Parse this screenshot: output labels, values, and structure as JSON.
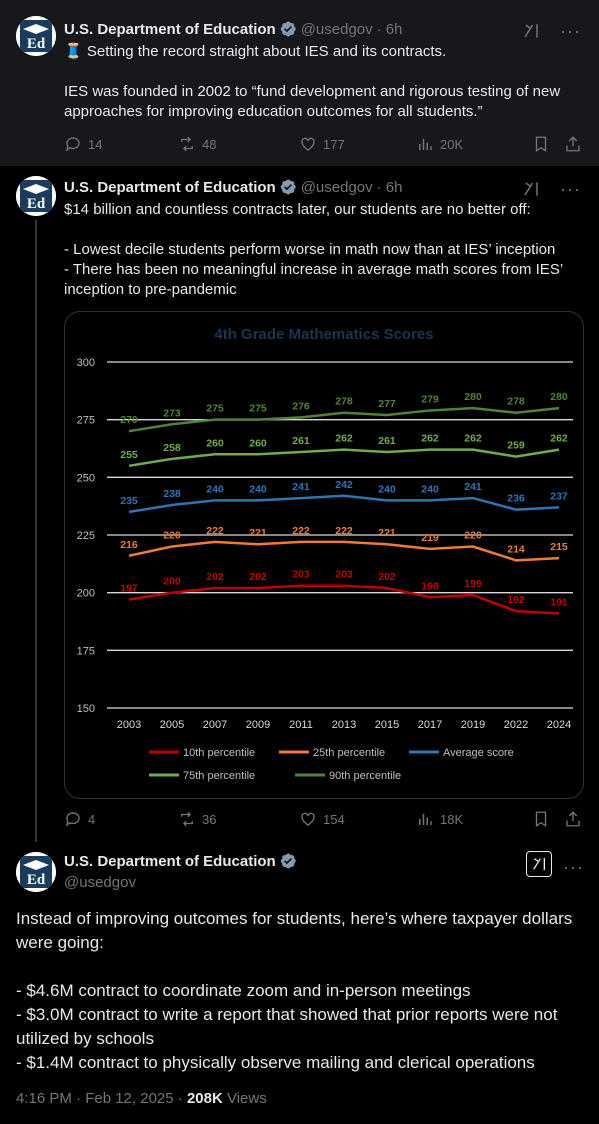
{
  "post1": {
    "name": "U.S. Department of Education",
    "handle": "@usedgov",
    "time": "· 6h",
    "text": "🧵 Setting the record straight about IES and its contracts.\n\nIES was founded in 2002 to “fund development and rigorous testing of new approaches for improving education outcomes for all students.”",
    "replies": "14",
    "reposts": "48",
    "likes": "177",
    "views": "20K"
  },
  "post2": {
    "name": "U.S. Department of Education",
    "handle": "@usedgov",
    "time": "· 6h",
    "text": "$14 billion and countless contracts later, our students are no better off:\n\n- Lowest decile students perform worse in math now than at IES’ inception\n- There has been no meaningful increase in average math scores from IES’ inception to pre-pandemic",
    "replies": "4",
    "reposts": "36",
    "likes": "154",
    "views": "18K"
  },
  "main_post": {
    "name": "U.S. Department of Education",
    "handle": "@usedgov",
    "text": "Instead of improving outcomes for students, here’s where taxpayer dollars were going:\n\n- $4.6M contract to coordinate zoom and in-person meetings\n- $3.0M contract to write a report that showed that prior reports were not utilized by schools\n- $1.4M contract to physically observe mailing and clerical operations",
    "timestamp": "4:16 PM · Feb 12, 2025 · ",
    "views_count": "208K",
    "views_label": " Views"
  },
  "icons": {
    "reply": "reply-icon",
    "repost": "repost-icon",
    "like": "heart-icon",
    "views": "analytics-icon",
    "bookmark": "bookmark-icon",
    "share": "share-icon",
    "grok": "grok-icon",
    "more": "more-icon",
    "verified": "verified-badge-icon"
  },
  "colors": {
    "background": "#000000",
    "thread_bg": "#16181c",
    "secondary_text": "#71767b",
    "verified_gray": "#829aab"
  },
  "chart_data": {
    "type": "line",
    "title": "4th Grade Mathematics Scores",
    "x": [
      "2003",
      "2005",
      "2007",
      "2009",
      "2011",
      "2013",
      "2015",
      "2017",
      "2019",
      "2022",
      "2024"
    ],
    "ylim": [
      150,
      300
    ],
    "yticks": [
      150,
      175,
      200,
      225,
      250,
      275,
      300
    ],
    "grid": true,
    "legend_position": "bottom",
    "series": [
      {
        "name": "10th percentile",
        "color": "#c00000",
        "values": [
          197,
          200,
          202,
          202,
          203,
          203,
          202,
          198,
          199,
          192,
          191
        ]
      },
      {
        "name": "25th percentile",
        "color": "#ed7d31",
        "values": [
          216,
          220,
          222,
          221,
          222,
          222,
          221,
          219,
          220,
          214,
          215
        ]
      },
      {
        "name": "Average score",
        "color": "#2e75b6",
        "values": [
          235,
          238,
          240,
          240,
          241,
          242,
          240,
          240,
          241,
          236,
          237
        ]
      },
      {
        "name": "75th percentile",
        "color": "#70ad47",
        "values": [
          255,
          258,
          260,
          260,
          261,
          262,
          261,
          262,
          262,
          259,
          262
        ]
      },
      {
        "name": "90th percentile",
        "color": "#548235",
        "values": [
          270,
          273,
          275,
          275,
          276,
          278,
          277,
          279,
          280,
          278,
          280
        ]
      }
    ]
  }
}
